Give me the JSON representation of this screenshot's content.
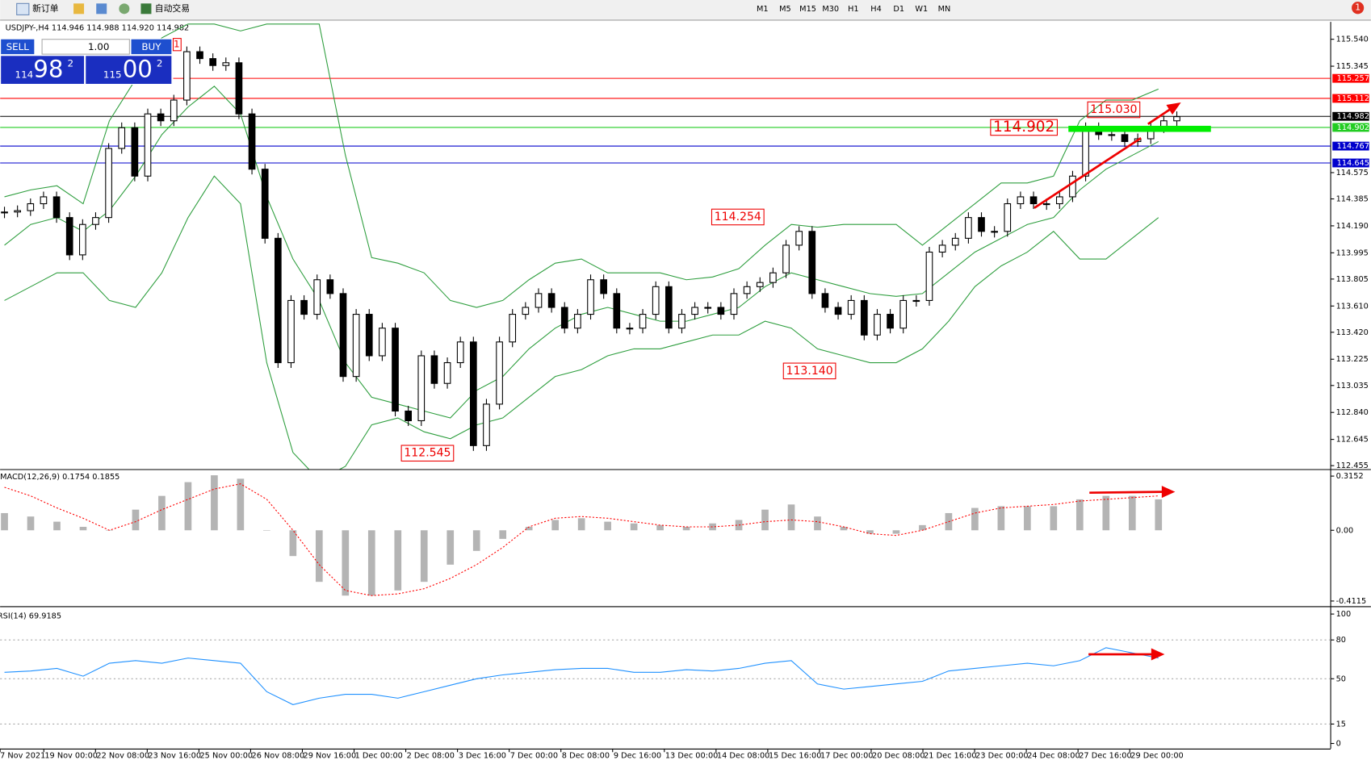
{
  "toolbar": {
    "new_order": "新订单",
    "auto_trading": "自动交易",
    "timeframes": [
      "M1",
      "M5",
      "M15",
      "M30",
      "H1",
      "H4",
      "D1",
      "W1",
      "MN"
    ],
    "notification": "1"
  },
  "trade_panel": {
    "sell": "SELL",
    "buy": "BUY",
    "lot": "1.00",
    "bid_big": "114",
    "bid_main": "98",
    "bid_sup": "2",
    "ask_big": "115",
    "ask_main": "00",
    "ask_sup": "2",
    "marker": "1"
  },
  "chart_data": [
    {
      "type": "candlestick",
      "title": "USDJPY-,H4 114.946 114.988 114.920 114.982",
      "close": [
        114.29,
        114.3,
        114.35,
        114.4,
        114.25,
        113.98,
        114.2,
        114.25,
        114.75,
        114.9,
        114.55,
        115.0,
        114.95,
        115.1,
        115.45,
        115.4,
        115.35,
        115.37,
        115.0,
        114.6,
        114.1,
        113.2,
        113.65,
        113.55,
        113.8,
        113.7,
        113.1,
        113.55,
        113.25,
        113.45,
        112.85,
        112.78,
        113.25,
        113.05,
        113.2,
        113.35,
        112.6,
        112.9,
        113.35,
        113.55,
        113.6,
        113.7,
        113.6,
        113.45,
        113.55,
        113.8,
        113.7,
        113.45,
        113.45,
        113.55,
        113.75,
        113.45,
        113.55,
        113.6,
        113.6,
        113.55,
        113.7,
        113.75,
        113.78,
        113.85,
        114.05,
        114.15,
        113.7,
        113.6,
        113.55,
        113.65,
        113.4,
        113.55,
        113.45,
        113.65,
        113.65,
        114.0,
        114.05,
        114.1,
        114.25,
        114.15,
        114.15,
        114.35,
        114.4,
        114.35,
        114.35,
        114.4,
        114.55,
        114.9,
        114.85,
        114.85,
        114.8,
        114.82,
        114.9,
        114.95,
        114.98
      ],
      "bands": {
        "color": "#2e9e3e",
        "upper": [
          114.4,
          114.45,
          114.48,
          114.35,
          114.95,
          115.25,
          115.55,
          115.65,
          115.65,
          115.6,
          115.65,
          115.65,
          115.65,
          114.7,
          113.96,
          113.92,
          113.85,
          113.65,
          113.6,
          113.65,
          113.8,
          113.92,
          113.95,
          113.85,
          113.85,
          113.85,
          113.8,
          113.82,
          113.88,
          114.05,
          114.2,
          114.18,
          114.2,
          114.2,
          114.2,
          114.05,
          114.2,
          114.35,
          114.5,
          114.5,
          114.55,
          114.95,
          115.1,
          115.1,
          115.18
        ],
        "middle": [
          114.05,
          114.2,
          114.25,
          114.15,
          114.3,
          114.55,
          114.85,
          115.05,
          115.2,
          115.0,
          114.4,
          113.95,
          113.65,
          113.2,
          112.95,
          112.9,
          112.85,
          112.8,
          113.0,
          113.1,
          113.3,
          113.45,
          113.55,
          113.6,
          113.55,
          113.5,
          113.5,
          113.55,
          113.6,
          113.75,
          113.85,
          113.8,
          113.75,
          113.7,
          113.68,
          113.7,
          113.85,
          114.0,
          114.1,
          114.2,
          114.25,
          114.45,
          114.6,
          114.7,
          114.8
        ],
        "lower": [
          113.65,
          113.75,
          113.85,
          113.85,
          113.65,
          113.6,
          113.85,
          114.25,
          114.55,
          114.35,
          113.2,
          112.55,
          112.35,
          112.45,
          112.75,
          112.8,
          112.7,
          112.65,
          112.75,
          112.8,
          112.95,
          113.1,
          113.15,
          113.25,
          113.3,
          113.3,
          113.35,
          113.4,
          113.4,
          113.5,
          113.45,
          113.3,
          113.25,
          113.2,
          113.2,
          113.3,
          113.5,
          113.75,
          113.9,
          114.0,
          114.15,
          113.95,
          113.95,
          114.1,
          114.25
        ]
      },
      "ylim": [
        112.43,
        115.666
      ],
      "yticks": [
        {
          "value": 115.54,
          "label": "115.540"
        },
        115.345,
        114.575,
        114.385,
        {
          "value": 114.19,
          "label": "114.190"
        },
        113.995,
        113.805,
        {
          "value": 113.61,
          "label": "113.610"
        },
        {
          "value": 113.42,
          "label": "113.420"
        },
        113.225,
        113.035,
        {
          "value": 112.84,
          "label": "112.840"
        },
        112.645,
        112.455
      ],
      "levels": [
        {
          "value": 115.257,
          "color": "#ff0000"
        },
        {
          "value": 115.112,
          "color": "#ff0000"
        },
        {
          "value": 114.982,
          "color": "#000000"
        },
        {
          "value": 114.902,
          "color": "#22cc22"
        },
        {
          "value": 114.767,
          "color": "#0000cc"
        },
        {
          "value": 114.645,
          "color": "#0000cc"
        }
      ],
      "price_labels": [
        {
          "value": 115.03,
          "label": "115.030"
        },
        114.902,
        114.254,
        {
          "value": 113.14,
          "label": "113.140"
        },
        112.545
      ],
      "time_labels": [
        "7 Nov 2021",
        "19 Nov 00:00",
        "22 Nov 08:00",
        "23 Nov 16:00",
        "25 Nov 00:00",
        "26 Nov 08:00",
        "29 Nov 16:00",
        "1 Dec 00:00",
        "2 Dec 08:00",
        "3 Dec 16:00",
        "7 Dec 00:00",
        "8 Dec 08:00",
        "9 Dec 16:00",
        "13 Dec 00:00",
        "14 Dec 08:00",
        "15 Dec 16:00",
        "17 Dec 00:00",
        "20 Dec 08:00",
        "21 Dec 16:00",
        "23 Dec 00:00",
        "24 Dec 08:00",
        "27 Dec 16:00",
        "29 Dec 00:00"
      ]
    },
    {
      "type": "macd",
      "title": "MACD(12,26,9) 0.1754 0.1855",
      "histogram": [
        0.1,
        0.08,
        0.05,
        0.02,
        0.0,
        0.12,
        0.2,
        0.28,
        0.32,
        0.3,
        0.0,
        -0.15,
        -0.3,
        -0.38,
        -0.38,
        -0.35,
        -0.3,
        -0.2,
        -0.12,
        -0.05,
        0.02,
        0.06,
        0.07,
        0.05,
        0.04,
        0.03,
        0.02,
        0.04,
        0.06,
        0.12,
        0.15,
        0.08,
        0.02,
        -0.02,
        -0.02,
        0.03,
        0.1,
        0.13,
        0.14,
        0.14,
        0.14,
        0.18,
        0.2,
        0.2,
        0.18
      ],
      "signal": [
        0.25,
        0.2,
        0.13,
        0.07,
        0.0,
        0.05,
        0.12,
        0.18,
        0.24,
        0.27,
        0.18,
        0.0,
        -0.2,
        -0.35,
        -0.38,
        -0.37,
        -0.34,
        -0.28,
        -0.2,
        -0.1,
        0.02,
        0.07,
        0.08,
        0.07,
        0.05,
        0.03,
        0.02,
        0.02,
        0.03,
        0.05,
        0.06,
        0.05,
        0.02,
        -0.02,
        -0.03,
        0.0,
        0.05,
        0.1,
        0.13,
        0.14,
        0.15,
        0.17,
        0.18,
        0.19,
        0.2
      ],
      "hist_color": "#b4b4b4",
      "signal_color": "#ff0000",
      "ylim": [
        -0.4369,
        0.3406
      ],
      "yticks": [
        0.3152,
        {
          "value": 0,
          "label": "0.00"
        },
        -0.4115
      ]
    },
    {
      "type": "rsi",
      "title": "RSI(14) 69.9185",
      "values": [
        55,
        56,
        58,
        52,
        62,
        64,
        62,
        66,
        64,
        62,
        40,
        30,
        35,
        38,
        38,
        35,
        40,
        45,
        50,
        53,
        55,
        57,
        58,
        58,
        55,
        55,
        57,
        56,
        58,
        62,
        64,
        46,
        42,
        44,
        46,
        48,
        56,
        58,
        60,
        62,
        60,
        64,
        74,
        70,
        66
      ],
      "color": "#1e90ff",
      "ylim": [
        -4,
        104
      ],
      "yticks": [
        100,
        80,
        50,
        15,
        0
      ],
      "levels": [
        80,
        50,
        15
      ]
    }
  ]
}
